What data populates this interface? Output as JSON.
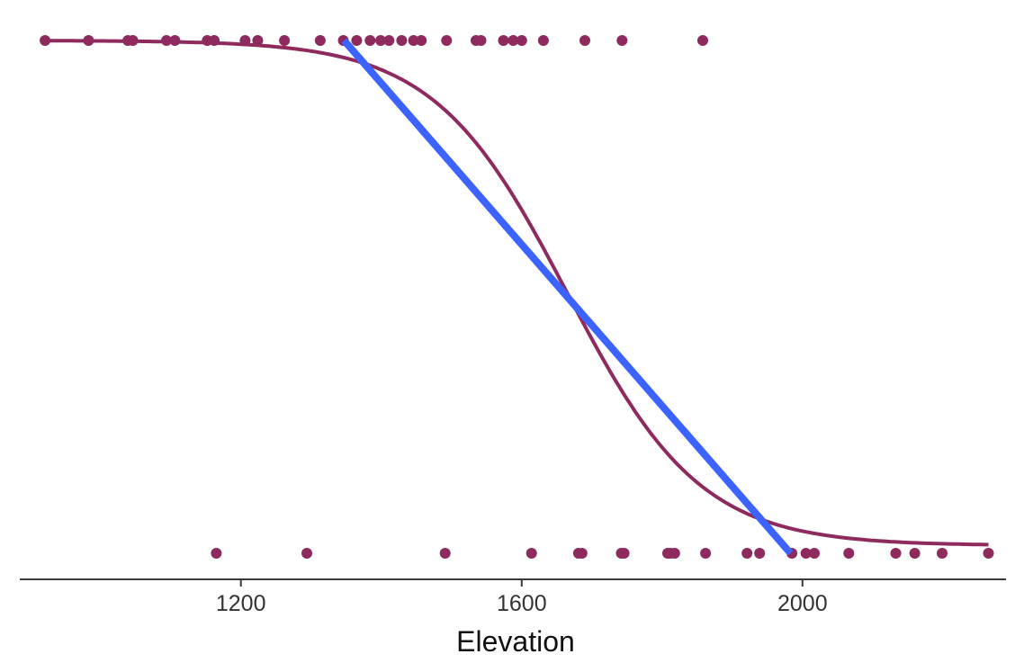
{
  "chart_data": {
    "type": "scatter",
    "title": "",
    "xlabel": "Elevation",
    "ylabel": "",
    "xlim": [
      885,
      2290
    ],
    "ylim": [
      -0.06,
      1.02
    ],
    "x_ticks": [
      1200,
      1600,
      2000
    ],
    "x_tick_labels": [
      "1200",
      "1600",
      "2000"
    ],
    "y_axis_shown": false,
    "grid": false,
    "legend": "none",
    "series": [
      {
        "kind": "points",
        "color": "#8e2a5e",
        "points": [
          {
            "x": 921,
            "y": 1
          },
          {
            "x": 983,
            "y": 1
          },
          {
            "x": 1039,
            "y": 1
          },
          {
            "x": 1046,
            "y": 1
          },
          {
            "x": 1094,
            "y": 1
          },
          {
            "x": 1106,
            "y": 1
          },
          {
            "x": 1152,
            "y": 1
          },
          {
            "x": 1162,
            "y": 1
          },
          {
            "x": 1206,
            "y": 1
          },
          {
            "x": 1224,
            "y": 1
          },
          {
            "x": 1262,
            "y": 1
          },
          {
            "x": 1313,
            "y": 1
          },
          {
            "x": 1346,
            "y": 1
          },
          {
            "x": 1365,
            "y": 1
          },
          {
            "x": 1384,
            "y": 1
          },
          {
            "x": 1399,
            "y": 1
          },
          {
            "x": 1411,
            "y": 1
          },
          {
            "x": 1429,
            "y": 1
          },
          {
            "x": 1446,
            "y": 1
          },
          {
            "x": 1457,
            "y": 1
          },
          {
            "x": 1493,
            "y": 1
          },
          {
            "x": 1535,
            "y": 1
          },
          {
            "x": 1542,
            "y": 1
          },
          {
            "x": 1574,
            "y": 1
          },
          {
            "x": 1588,
            "y": 1
          },
          {
            "x": 1600,
            "y": 1
          },
          {
            "x": 1631,
            "y": 1
          },
          {
            "x": 1690,
            "y": 1
          },
          {
            "x": 1743,
            "y": 1
          },
          {
            "x": 1858,
            "y": 1
          },
          {
            "x": 1165,
            "y": 0
          },
          {
            "x": 1294,
            "y": 0
          },
          {
            "x": 1491,
            "y": 0
          },
          {
            "x": 1614,
            "y": 0
          },
          {
            "x": 1681,
            "y": 0
          },
          {
            "x": 1686,
            "y": 0
          },
          {
            "x": 1742,
            "y": 0
          },
          {
            "x": 1746,
            "y": 0
          },
          {
            "x": 1808,
            "y": 0
          },
          {
            "x": 1812,
            "y": 0
          },
          {
            "x": 1818,
            "y": 0
          },
          {
            "x": 1862,
            "y": 0
          },
          {
            "x": 1921,
            "y": 0
          },
          {
            "x": 1939,
            "y": 0
          },
          {
            "x": 1985,
            "y": 0
          },
          {
            "x": 2005,
            "y": 0
          },
          {
            "x": 2017,
            "y": 0
          },
          {
            "x": 2066,
            "y": 0
          },
          {
            "x": 2133,
            "y": 0
          },
          {
            "x": 2160,
            "y": 0
          },
          {
            "x": 2199,
            "y": 0
          },
          {
            "x": 2265,
            "y": 0
          }
        ]
      },
      {
        "kind": "logistic-fit",
        "color": "#8e2a5e",
        "x_range": [
          921,
          2265
        ],
        "midpoint": 1665,
        "scale": 95,
        "y_min": 0.015,
        "y_max": 1.0
      },
      {
        "kind": "tangent-line",
        "color": "#3d63ff",
        "points": [
          {
            "x": 1347,
            "y": 1.0
          },
          {
            "x": 1983,
            "y": 0.0
          }
        ]
      }
    ]
  }
}
